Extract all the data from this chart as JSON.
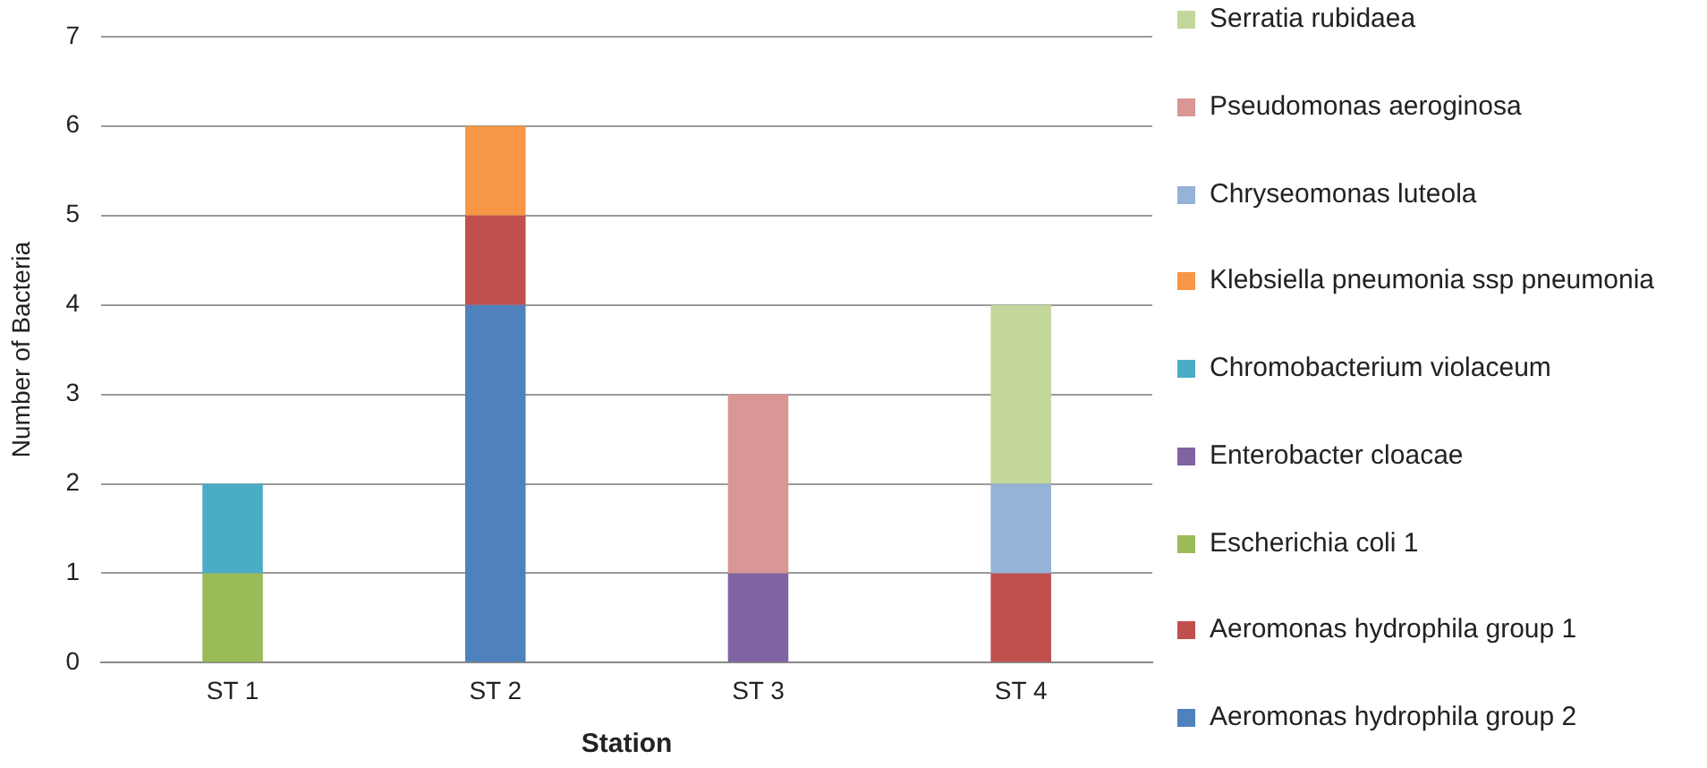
{
  "chart_data": {
    "type": "bar",
    "stacked": true,
    "xlabel": "Station",
    "ylabel": "Number of Bacteria",
    "categories": [
      "ST 1",
      "ST 2",
      "ST 3",
      "ST 4"
    ],
    "ylim": [
      0,
      7
    ],
    "yticks": [
      0,
      1,
      2,
      3,
      4,
      5,
      6,
      7
    ],
    "grid": "y",
    "legend": "right",
    "series": [
      {
        "name": "Aeromonas hydrophila group 2",
        "color": "#4f81bd",
        "values": [
          null,
          4,
          null,
          null
        ]
      },
      {
        "name": "Aeromonas hydrophila group 1",
        "color": "#c0504d",
        "values": [
          null,
          1,
          null,
          1
        ]
      },
      {
        "name": "Escherichia coli 1",
        "color": "#9bbb59",
        "values": [
          1,
          null,
          null,
          null
        ]
      },
      {
        "name": "Enterobacter cloacae",
        "color": "#8064a2",
        "values": [
          null,
          null,
          1,
          null
        ]
      },
      {
        "name": "Chromobacterium violaceum",
        "color": "#4bacc6",
        "values": [
          1,
          null,
          null,
          null
        ]
      },
      {
        "name": "Klebsiella pneumonia ssp pneumonia",
        "color": "#f79646",
        "values": [
          null,
          1,
          null,
          null
        ]
      },
      {
        "name": "Chryseomonas luteola",
        "color": "#95b3d7",
        "values": [
          null,
          null,
          null,
          1
        ]
      },
      {
        "name": "Pseudomonas aeroginosa",
        "color": "#d99694",
        "values": [
          null,
          null,
          2,
          null
        ]
      },
      {
        "name": "Serratia rubidaea",
        "color": "#c3d69b",
        "values": [
          null,
          null,
          null,
          2
        ]
      }
    ]
  }
}
